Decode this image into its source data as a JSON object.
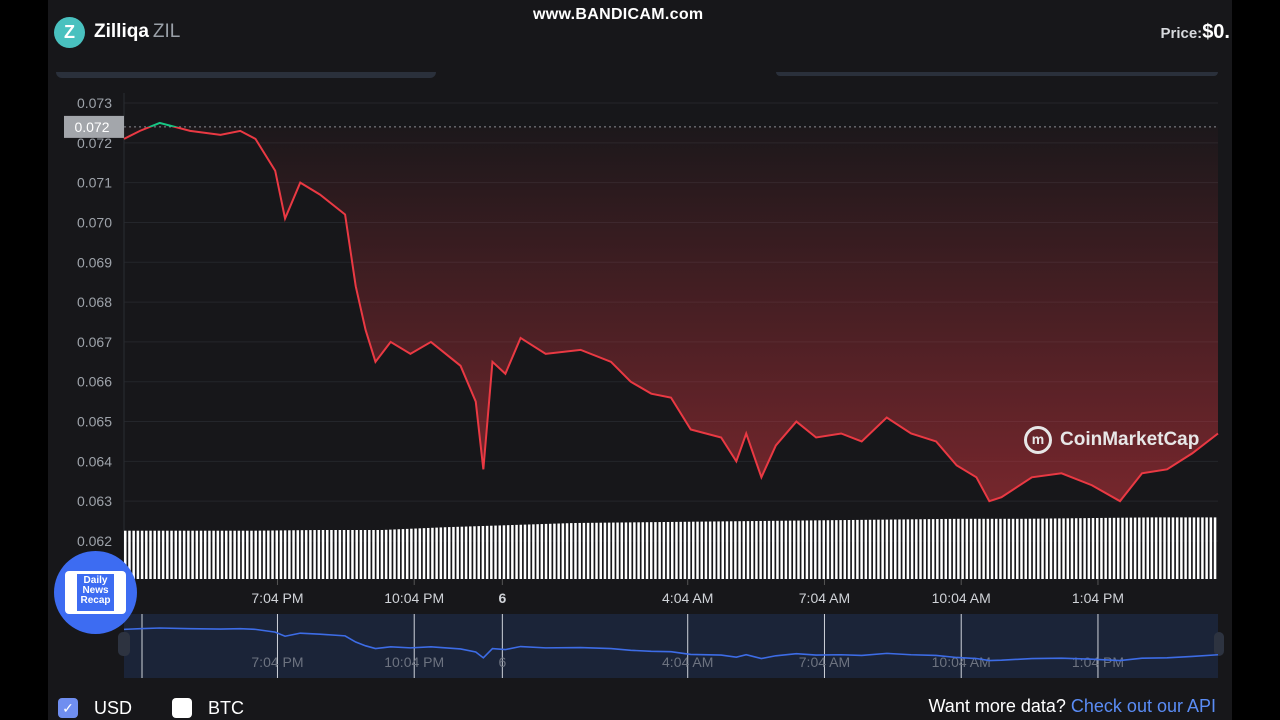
{
  "header": {
    "coin_name": "Zilliqa",
    "symbol": "ZIL",
    "logo_letter": "Z",
    "price_label": "Price:",
    "price_value": "$0.",
    "watermark": "www.BANDICAM.com"
  },
  "badge": {
    "text1": "Daily",
    "text2": "News",
    "text3": "Recap"
  },
  "branding": {
    "cmc": "CoinMarketCap"
  },
  "footer": {
    "usd": "USD",
    "btc": "BTC",
    "usd_checked": true,
    "btc_checked": false,
    "more_text": "Want more data?",
    "api_link": "Check out our API"
  },
  "colors": {
    "up": "#16c784",
    "down": "#ea3943",
    "navigator": "#3d6ce6",
    "volume": "#ffffff"
  },
  "chart_data": {
    "type": "line",
    "title": "",
    "xlabel": "",
    "ylabel": "",
    "ylim": [
      0.062,
      0.073
    ],
    "yticks": [
      "0.073",
      "0.072",
      "0.071",
      "0.070",
      "0.069",
      "0.068",
      "0.067",
      "0.066",
      "0.065",
      "0.064",
      "0.063",
      "0.062"
    ],
    "xticks": [
      "7:04 PM",
      "10:04 PM",
      "6",
      "4:04 AM",
      "7:04 AM",
      "10:04 AM",
      "1:04 PM"
    ],
    "xtick_times": [
      "19:04",
      "22:04",
      "00:00",
      "04:04",
      "07:04",
      "10:04",
      "13:04"
    ],
    "x_range": [
      "15:42",
      "15:42"
    ],
    "reference_price": 0.0724,
    "reference_label": "0.072",
    "grid": true,
    "series": [
      {
        "x": [
          "15:42",
          "16:03",
          "16:29",
          "17:09",
          "17:49",
          "18:15",
          "18:35",
          "19:01",
          "19:14",
          "19:34",
          "20:00",
          "20:33",
          "20:47",
          "21:00",
          "21:13",
          "21:33",
          "21:59",
          "22:26",
          "23:05",
          "23:25",
          "23:35",
          "23:47",
          "00:04",
          "00:24",
          "00:57",
          "01:43",
          "02:23",
          "02:49",
          "03:16",
          "03:42",
          "04:08",
          "04:48",
          "05:08",
          "05:21",
          "05:41",
          "06:00",
          "06:27",
          "06:53",
          "07:26",
          "07:53",
          "08:26",
          "08:58",
          "09:31",
          "09:58",
          "10:24",
          "10:41",
          "10:57",
          "11:37",
          "12:16",
          "12:56",
          "13:33",
          "14:02",
          "14:35",
          "15:08",
          "15:42"
        ],
        "values": [
          0.0721,
          0.0723,
          0.0725,
          0.0723,
          0.0722,
          0.0723,
          0.0721,
          0.0713,
          0.0701,
          0.071,
          0.0707,
          0.0702,
          0.0684,
          0.0673,
          0.0665,
          0.067,
          0.0667,
          0.067,
          0.0664,
          0.0655,
          0.0638,
          0.0665,
          0.0662,
          0.0671,
          0.0667,
          0.0668,
          0.0665,
          0.066,
          0.0657,
          0.0656,
          0.0648,
          0.0646,
          0.064,
          0.0647,
          0.0636,
          0.0644,
          0.065,
          0.0646,
          0.0647,
          0.0645,
          0.0651,
          0.0647,
          0.0645,
          0.0639,
          0.0636,
          0.063,
          0.0631,
          0.0636,
          0.0637,
          0.0634,
          0.063,
          0.0637,
          0.0638,
          0.0642,
          0.0647
        ]
      }
    ],
    "volume_relative": [
      0.69,
      0.69,
      0.69,
      0.7,
      0.7,
      0.74,
      0.77,
      0.8,
      0.81,
      0.82,
      0.83,
      0.84,
      0.85,
      0.86,
      0.86,
      0.87,
      0.88,
      0.88
    ]
  }
}
